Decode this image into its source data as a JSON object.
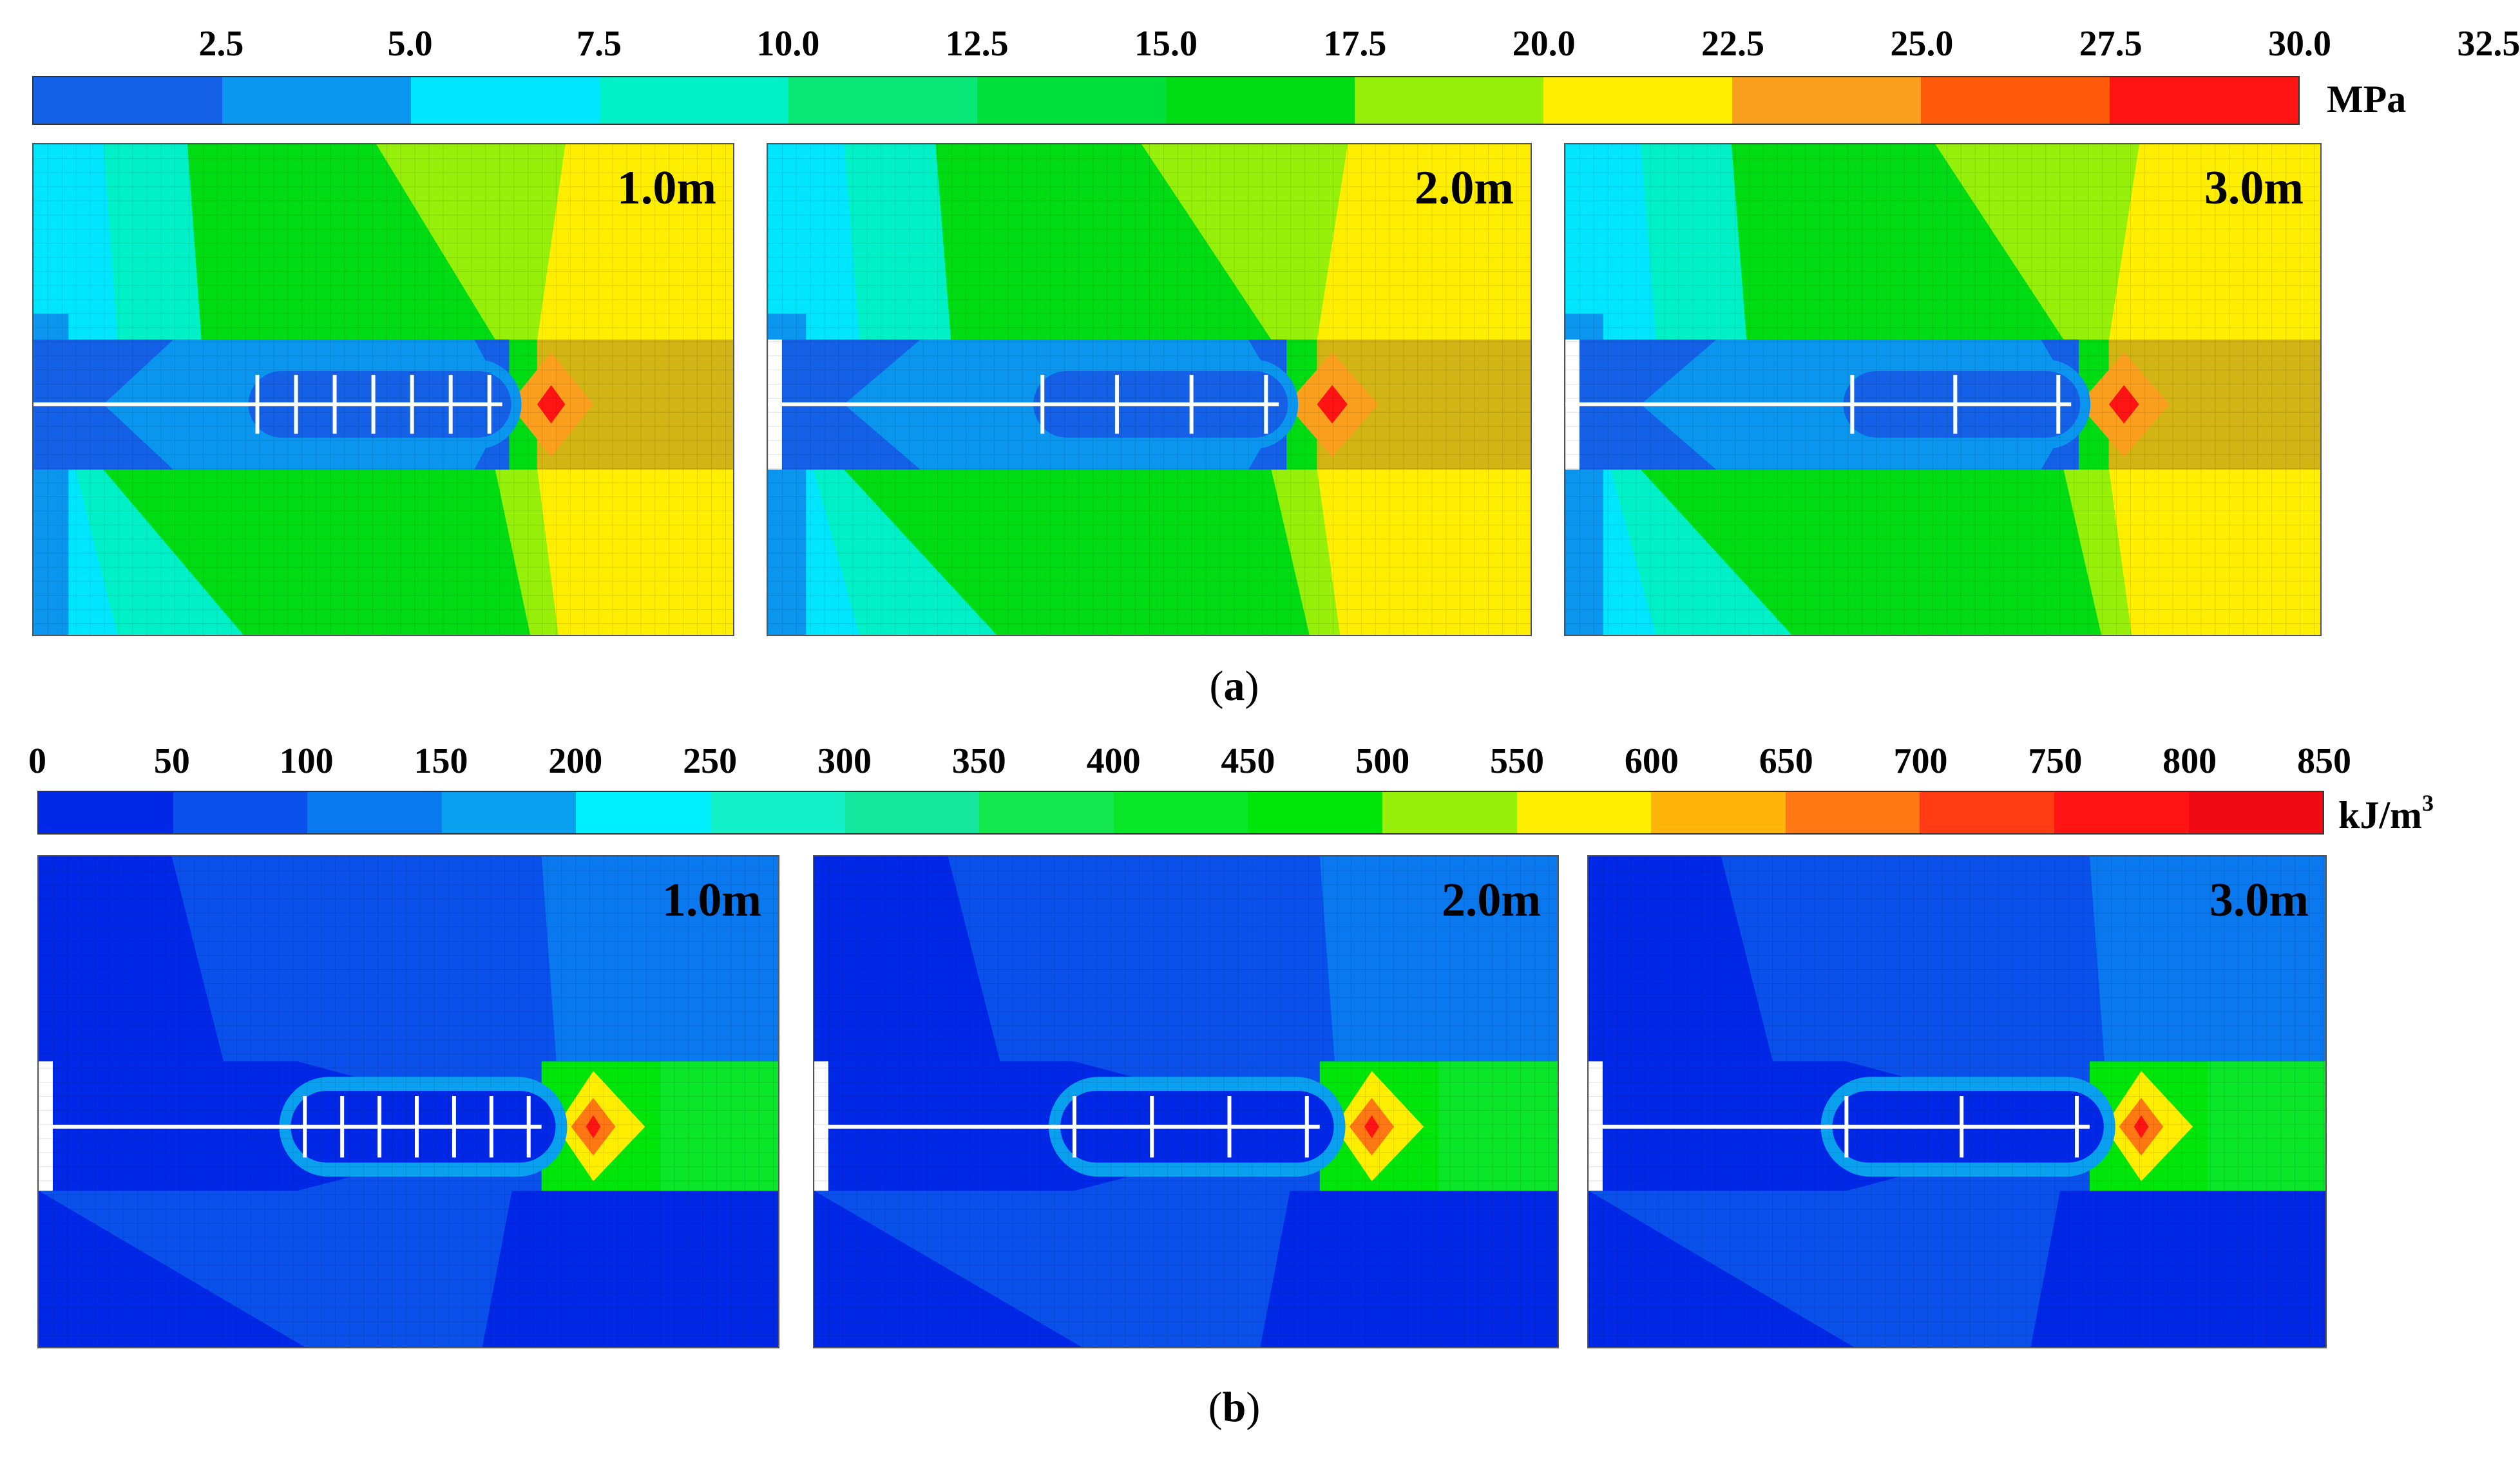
{
  "figure_a": {
    "caption_open": "(",
    "caption_letter": "a",
    "caption_close": ")",
    "unit": "MPa",
    "ticks": [
      "2.5",
      "5.0",
      "7.5",
      "10.0",
      "12.5",
      "15.0",
      "17.5",
      "20.0",
      "22.5",
      "25.0",
      "27.5",
      "30.0",
      "32.5"
    ],
    "colors": [
      "#1460e6",
      "#0a96ee",
      "#00e6ff",
      "#00f0c8",
      "#0ae878",
      "#00e03c",
      "#00dc14",
      "#96f00a",
      "#ffee00",
      "#fba01e",
      "#ff5a0a",
      "#ff1414"
    ],
    "panels": [
      {
        "label": "1.0m",
        "bolts": 7,
        "blank_mouth": false
      },
      {
        "label": "2.0m",
        "bolts": 4,
        "blank_mouth": true
      },
      {
        "label": "3.0m",
        "bolts": 3,
        "blank_mouth": true
      }
    ]
  },
  "figure_b": {
    "caption_open": "(",
    "caption_letter": "b",
    "caption_close": ")",
    "unit_base": "kJ/m",
    "unit_exp": "3",
    "ticks": [
      "0",
      "50",
      "100",
      "150",
      "200",
      "250",
      "300",
      "350",
      "400",
      "450",
      "500",
      "550",
      "600",
      "650",
      "700",
      "750",
      "800",
      "850"
    ],
    "colors": [
      "#0028e6",
      "#0a50ea",
      "#0a78ee",
      "#0aa0f0",
      "#00f0ff",
      "#14f0c8",
      "#14e69b",
      "#14e650",
      "#0ae628",
      "#00e60a",
      "#96f00a",
      "#ffee00",
      "#ffb40a",
      "#ff7814",
      "#ff3c14",
      "#ff1414",
      "#f00a14"
    ],
    "panels": [
      {
        "label": "1.0m",
        "bolts": 7,
        "blank_mouth": true
      },
      {
        "label": "2.0m",
        "bolts": 4,
        "blank_mouth": true
      },
      {
        "label": "3.0m",
        "bolts": 3,
        "blank_mouth": true
      }
    ]
  }
}
